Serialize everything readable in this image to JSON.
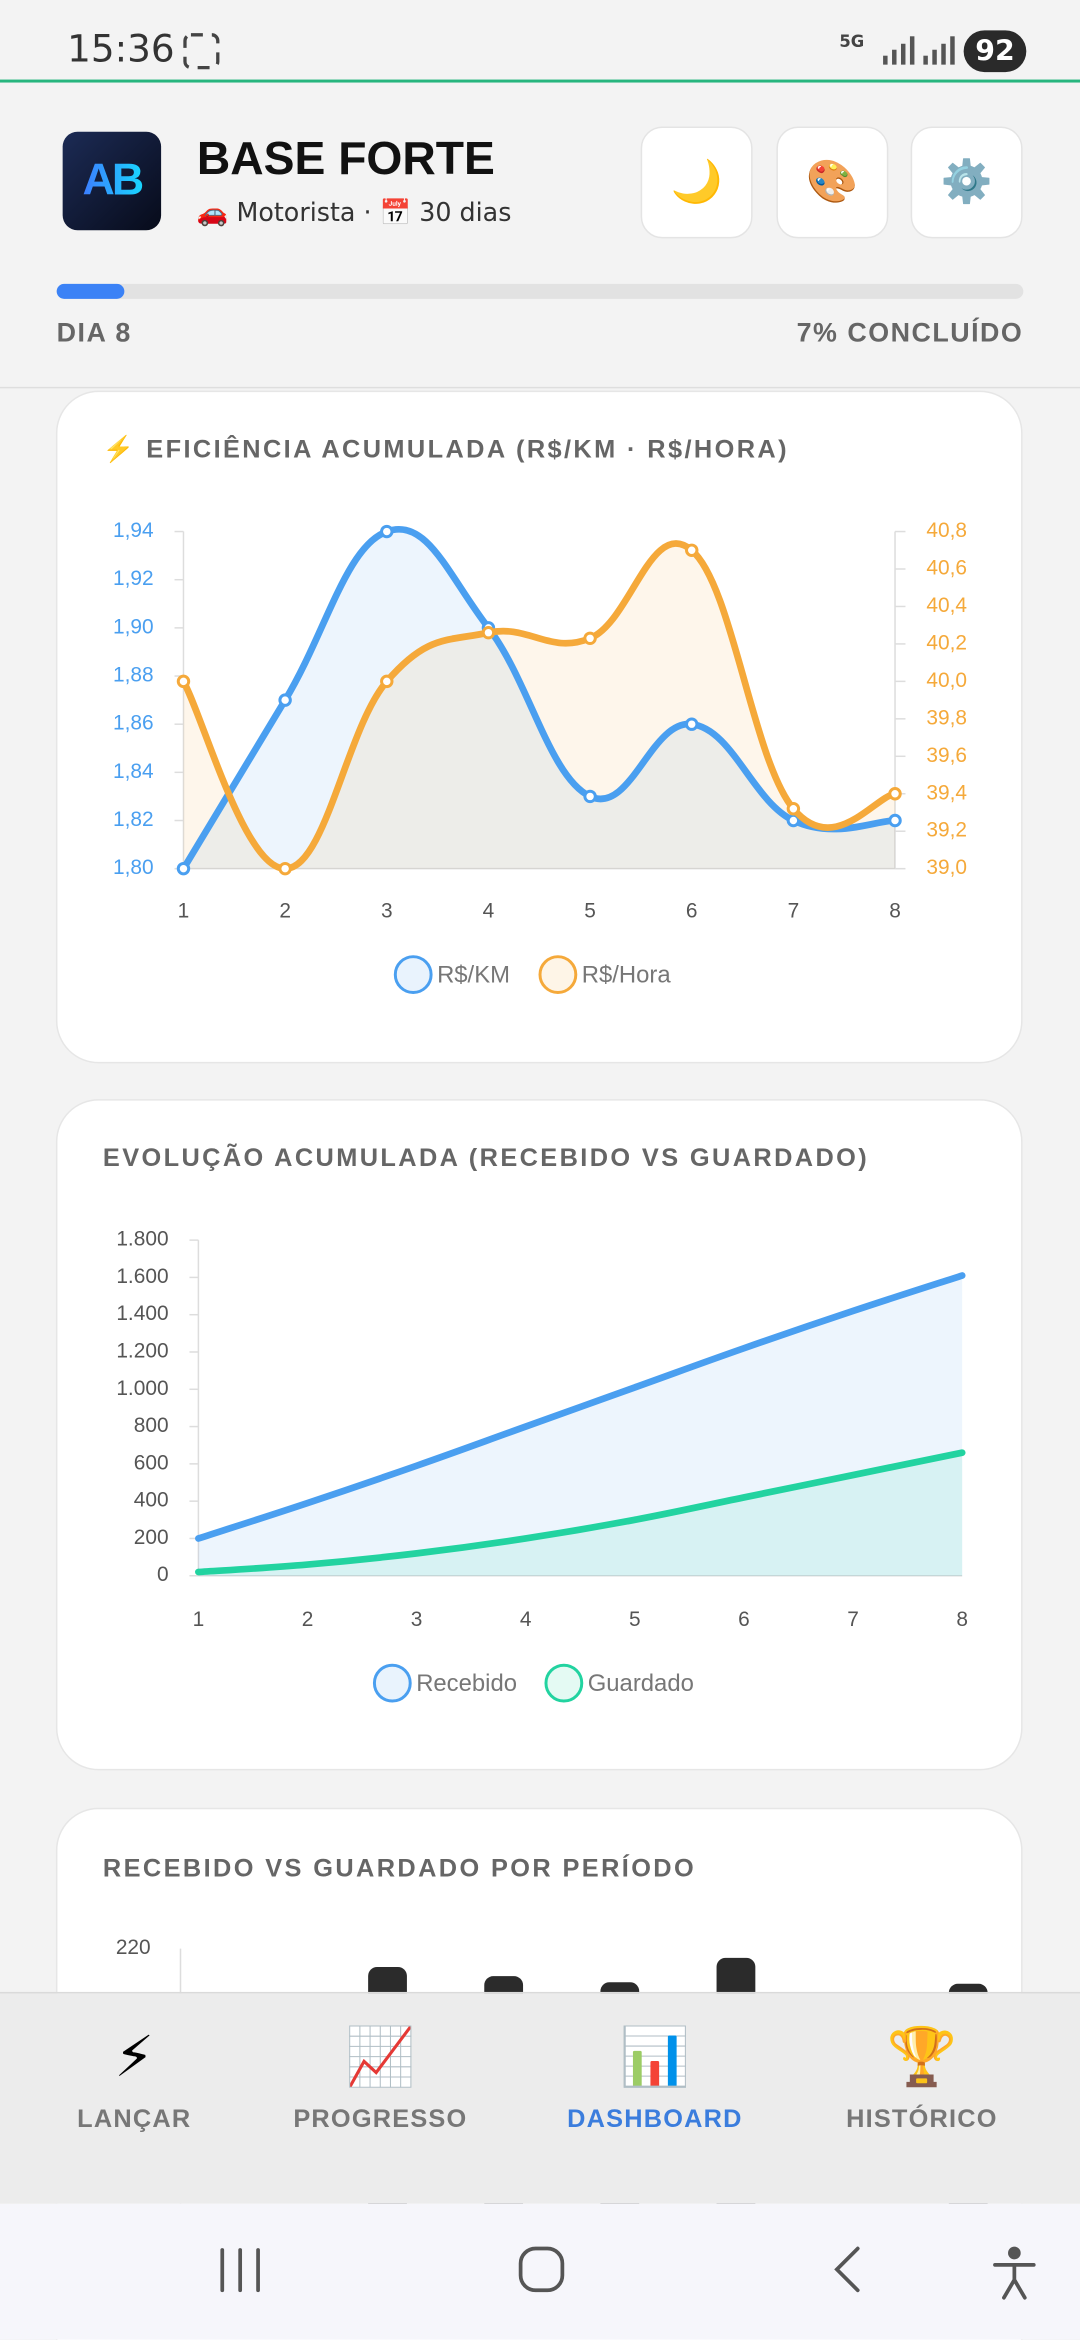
{
  "status_bar": {
    "time": "15:36",
    "network": "5G",
    "battery": "92"
  },
  "header": {
    "logo": "AB",
    "title": "BASE FORTE",
    "subtitle": "🚗 Motorista · 📅 30 dias",
    "buttons": [
      "🌙",
      "🎨",
      "⚙️"
    ]
  },
  "progress": {
    "day": "DIA 8",
    "label": "7% CONCLUÍDO",
    "percent": 7
  },
  "chart_data": [
    {
      "type": "line",
      "title": "⚡ EFICIÊNCIA ACUMULADA (R$/KM · R$/HORA)",
      "categories": [
        "1",
        "2",
        "3",
        "4",
        "5",
        "6",
        "7",
        "8"
      ],
      "series": [
        {
          "name": "R$/KM",
          "color": "#4a9ff0",
          "values": [
            1.8,
            1.87,
            1.94,
            1.9,
            1.83,
            1.86,
            1.82,
            1.82
          ]
        },
        {
          "name": "R$/Hora",
          "color": "#f5a93a",
          "axis": "y2",
          "values": [
            40.0,
            39.0,
            40.0,
            40.26,
            40.23,
            40.7,
            39.32,
            39.4
          ]
        }
      ],
      "ylim": [
        1.8,
        1.94
      ],
      "yticks": [
        {
          "value": 1.8,
          "label": "1,80"
        },
        {
          "value": 1.82,
          "label": "1,82"
        },
        {
          "value": 1.84,
          "label": "1,84"
        },
        {
          "value": 1.86,
          "label": "1,86"
        },
        {
          "value": 1.88,
          "label": "1,88"
        },
        {
          "value": 1.9,
          "label": "1,90"
        },
        {
          "value": 1.92,
          "label": "1,92"
        },
        {
          "value": 1.94,
          "label": "1,94"
        }
      ],
      "y2lim": [
        39,
        40.8
      ],
      "y2ticks": [
        {
          "value": 39,
          "label": "39,0"
        },
        {
          "value": 39.2,
          "label": "39,2"
        },
        {
          "value": 39.4,
          "label": "39,4"
        },
        {
          "value": 39.6,
          "label": "39,6"
        },
        {
          "value": 39.8,
          "label": "39,8"
        },
        {
          "value": 40,
          "label": "40,0"
        },
        {
          "value": 40.2,
          "label": "40,2"
        },
        {
          "value": 40.4,
          "label": "40,4"
        },
        {
          "value": 40.6,
          "label": "40,6"
        },
        {
          "value": 40.8,
          "label": "40,8"
        }
      ],
      "fill": true,
      "points": true,
      "legend": "bottom"
    },
    {
      "type": "line",
      "title": "EVOLUÇÃO ACUMULADA (RECEBIDO VS GUARDADO)",
      "categories": [
        "1",
        "2",
        "3",
        "4",
        "5",
        "6",
        "7",
        "8"
      ],
      "series": [
        {
          "name": "Recebido",
          "color": "#4a9ff0",
          "values": [
            200,
            390,
            590,
            800,
            1010,
            1220,
            1420,
            1610
          ]
        },
        {
          "name": "Guardado",
          "color": "#22d3a0",
          "values": [
            20,
            60,
            120,
            200,
            300,
            420,
            540,
            660
          ]
        }
      ],
      "ylim": [
        0,
        1800
      ],
      "yticks": [
        0,
        200,
        400,
        600,
        800,
        {
          "value": 1000,
          "label": "1.000"
        },
        {
          "value": 1200,
          "label": "1.200"
        },
        {
          "value": 1400,
          "label": "1.400"
        },
        {
          "value": 1600,
          "label": "1.600"
        },
        {
          "value": 1800,
          "label": "1.800"
        }
      ],
      "fill": true,
      "points": false,
      "legend": "bottom"
    },
    {
      "type": "bar",
      "title": "RECEBIDO VS GUARDADO POR PERÍODO",
      "categories": [
        null,
        null,
        null,
        null,
        null,
        null,
        null
      ],
      "values": [
        null,
        208,
        202,
        198,
        214,
        null,
        197
      ],
      "color": "#2b2b2b",
      "ylim": [
        0,
        220
      ],
      "yticks": [
        220
      ]
    }
  ],
  "nav": [
    {
      "icon": "⚡",
      "label": "LANÇAR",
      "active": false
    },
    {
      "icon": "📈",
      "label": "PROGRESSO",
      "active": false
    },
    {
      "icon": "📊",
      "label": "DASHBOARD",
      "active": true
    },
    {
      "icon": "🏆",
      "label": "HISTÓRICO",
      "active": false
    }
  ]
}
